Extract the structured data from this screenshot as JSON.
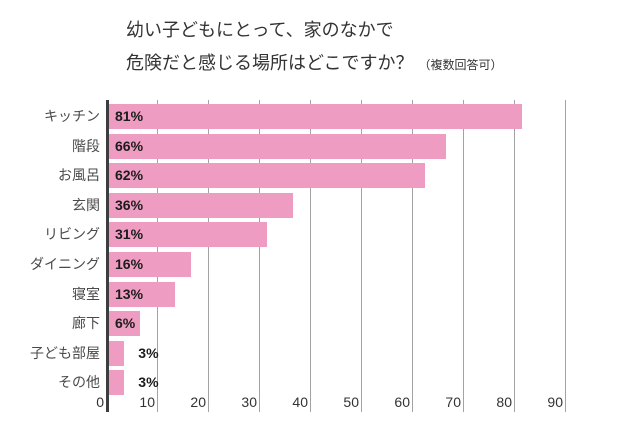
{
  "title": {
    "line1": "幼い子どもにとって、家のなかで",
    "line2": "危険だと感じる場所はどこですか？",
    "note": "（複数回答可）"
  },
  "chart_data": {
    "type": "bar",
    "orientation": "horizontal",
    "title": "幼い子どもにとって、家のなかで危険だと感じる場所はどこですか？（複数回答可）",
    "categories": [
      "キッチン",
      "階段",
      "お風呂",
      "玄関",
      "リビング",
      "ダイニング",
      "寝室",
      "廊下",
      "子ども部屋",
      "その他"
    ],
    "values": [
      81,
      66,
      62,
      36,
      31,
      16,
      13,
      6,
      3,
      3
    ],
    "value_labels": [
      "81%",
      "66%",
      "62%",
      "36%",
      "31%",
      "16%",
      "13%",
      "6%",
      "3%",
      "3%"
    ],
    "unit": "%",
    "xlabel": "",
    "ylabel": "",
    "xlim": [
      0,
      92
    ],
    "xticks": [
      0,
      10,
      20,
      30,
      40,
      50,
      60,
      70,
      80,
      90
    ],
    "grid": true,
    "legend": "none",
    "colors": {
      "bar": "#ee9cc1",
      "axis_line": "#3d3d3d",
      "gridline": "#a3a3a3",
      "title_text": "#333333",
      "category_text": "#4a4a4a",
      "value_text": "#1c1c1c",
      "tick_text": "#333333",
      "background": "#ffffff"
    }
  }
}
